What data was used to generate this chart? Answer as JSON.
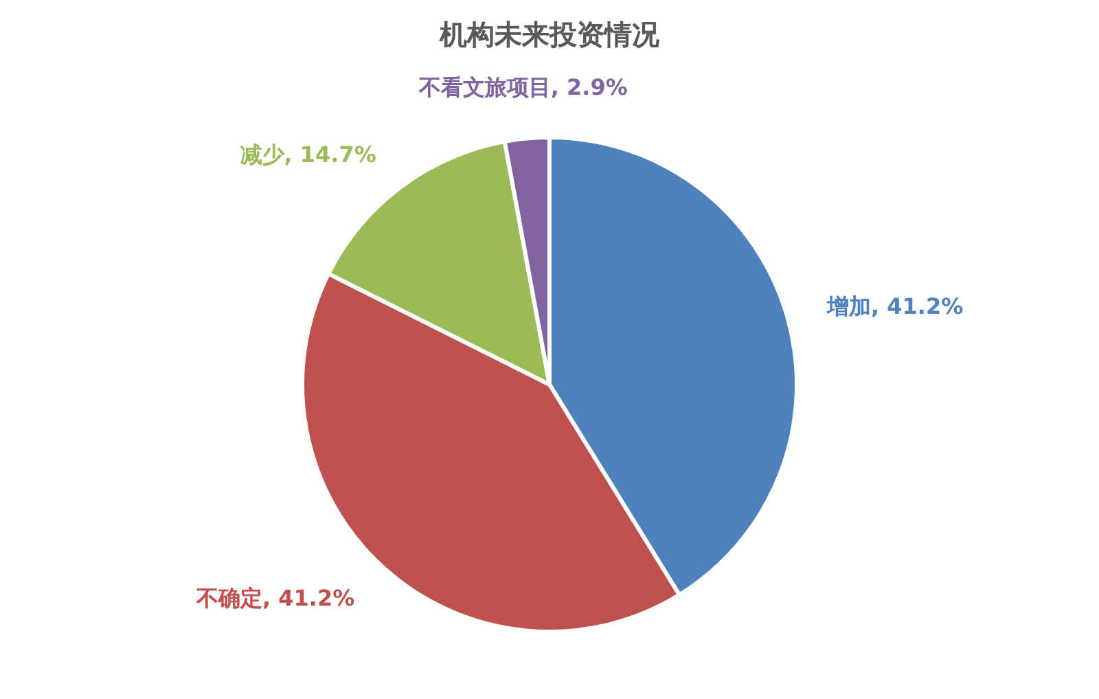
{
  "chart_data": {
    "type": "pie",
    "title": "机构未来投资情况",
    "categories": [
      "增加",
      "不确定",
      "减少",
      "不看文旅项目"
    ],
    "values": [
      41.2,
      41.2,
      14.7,
      2.9
    ],
    "colors": [
      "#4f81bd",
      "#c0504d",
      "#9bbb59",
      "#8064a2"
    ],
    "value_labels": [
      "41.2%",
      "41.2%",
      "14.7%",
      "2.9%"
    ]
  }
}
